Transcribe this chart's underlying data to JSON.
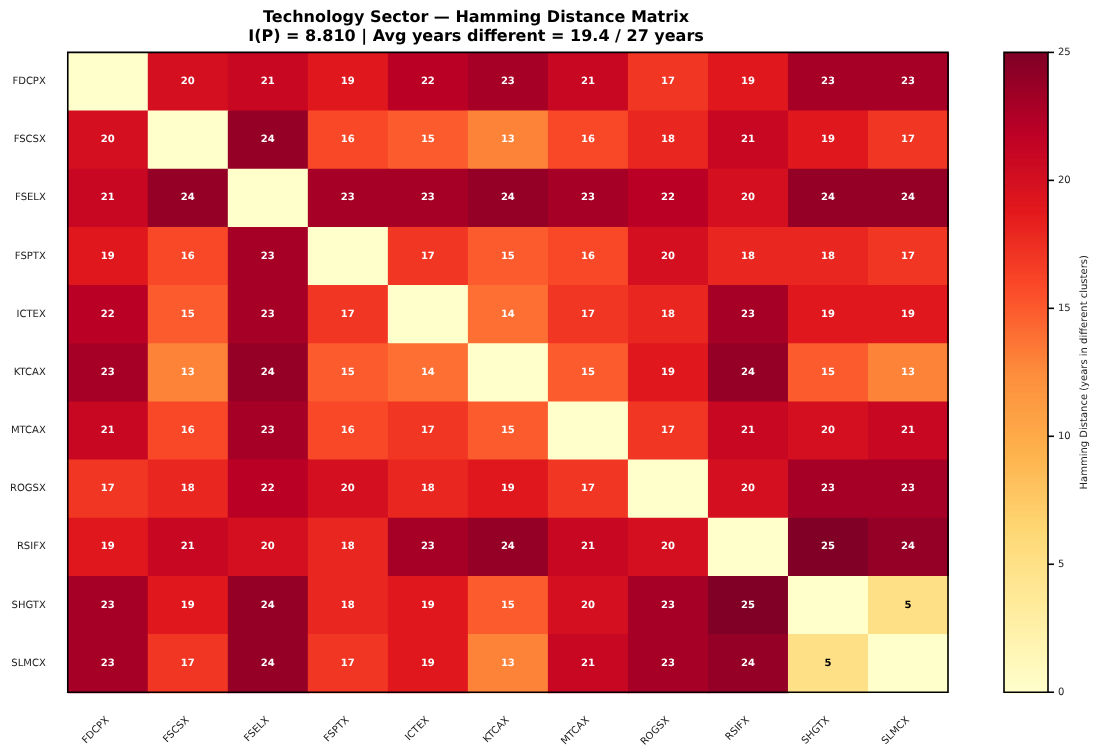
{
  "chart_data": {
    "type": "heatmap",
    "title": "Technology Sector — Hamming Distance Matrix",
    "subtitle": "I(P) = 8.810 | Avg years different = 19.4 / 27 years",
    "clabel": "Hamming Distance (years in different clusters)",
    "categories": [
      "FDCPX",
      "FSCSX",
      "FSELX",
      "FSPTX",
      "ICTEX",
      "KTCAX",
      "MTCAX",
      "ROGSX",
      "RSIFX",
      "SHGTX",
      "SLMCX"
    ],
    "y_categories": [
      "FDCPX",
      "FSCSX",
      "FSELX",
      "FSPTX",
      "ICTEX",
      "KTCAX",
      "MTCAX",
      "ROGSX",
      "RSIFX",
      "SHGTX",
      "SLMCX"
    ],
    "cells": [
      [
        0,
        20,
        21,
        19,
        22,
        23,
        21,
        17,
        19,
        23,
        23
      ],
      [
        20,
        0,
        24,
        16,
        15,
        13,
        16,
        18,
        21,
        19,
        17
      ],
      [
        21,
        24,
        0,
        23,
        23,
        24,
        23,
        22,
        20,
        24,
        24
      ],
      [
        19,
        16,
        23,
        0,
        17,
        15,
        16,
        20,
        18,
        18,
        17
      ],
      [
        22,
        15,
        23,
        17,
        0,
        14,
        17,
        18,
        23,
        19,
        19
      ],
      [
        23,
        13,
        24,
        15,
        14,
        0,
        15,
        19,
        24,
        15,
        13
      ],
      [
        21,
        16,
        23,
        16,
        17,
        15,
        0,
        17,
        21,
        20,
        21
      ],
      [
        17,
        18,
        22,
        20,
        18,
        19,
        17,
        0,
        20,
        23,
        23
      ],
      [
        19,
        21,
        20,
        18,
        23,
        24,
        21,
        20,
        0,
        25,
        24
      ],
      [
        23,
        19,
        24,
        18,
        19,
        15,
        20,
        23,
        25,
        0,
        5
      ],
      [
        23,
        17,
        24,
        17,
        19,
        13,
        21,
        23,
        24,
        5,
        0
      ]
    ],
    "cell_labels": [
      [
        null,
        "20",
        "21",
        "19",
        "22",
        "23",
        "21",
        "17",
        "19",
        "23",
        "23"
      ],
      [
        "20",
        null,
        "24",
        "16",
        "15",
        "13",
        "16",
        "18",
        "21",
        "19",
        "17"
      ],
      [
        "21",
        "24",
        null,
        "23",
        "23",
        "24",
        "23",
        "22",
        "20",
        "24",
        "24"
      ],
      [
        "19",
        "16",
        "23",
        null,
        "17",
        "15",
        "16",
        "20",
        "18",
        "18",
        "17"
      ],
      [
        "22",
        "15",
        "23",
        "17",
        null,
        "14",
        "17",
        "18",
        "23",
        "19",
        "19"
      ],
      [
        "23",
        "13",
        "24",
        "15",
        "14",
        null,
        "15",
        "19",
        "24",
        "15",
        "13"
      ],
      [
        "21",
        "16",
        "23",
        "16",
        "17",
        "15",
        null,
        "17",
        "21",
        "20",
        "21"
      ],
      [
        "17",
        "18",
        "22",
        "20",
        "18",
        "19",
        "17",
        null,
        "20",
        "23",
        "23"
      ],
      [
        "19",
        "21",
        "20",
        "18",
        "23",
        "24",
        "21",
        "20",
        null,
        "25",
        "24"
      ],
      [
        "23",
        "19",
        "24",
        "18",
        "19",
        "15",
        "20",
        "23",
        "25",
        null,
        "5"
      ],
      [
        "23",
        "17",
        "24",
        "17",
        "19",
        "13",
        "21",
        "23",
        "24",
        "5",
        null
      ]
    ],
    "clim": [
      0,
      25
    ],
    "cticks": [
      0,
      5,
      10,
      15,
      20,
      25
    ]
  }
}
